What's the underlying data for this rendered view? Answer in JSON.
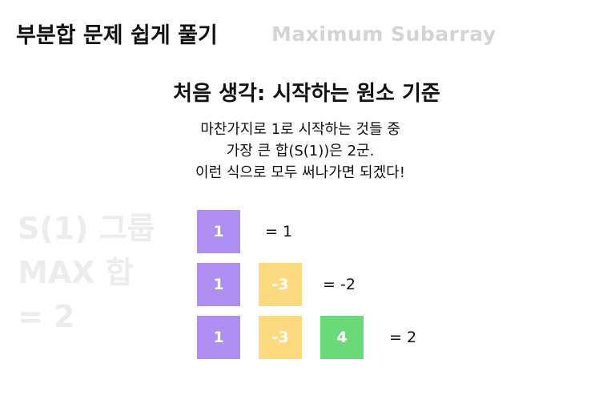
{
  "header": {
    "title": "부분합 문제 쉽게 풀기",
    "subtitle": "Maximum Subarray"
  },
  "section": {
    "heading": "처음 생각: 시작하는 원소 기준"
  },
  "description": {
    "lines": [
      "마찬가지로 1로 시작하는 것들 중",
      "가장 큰 합(S(1))은 2군.",
      "이런 식으로 모두 써나가면 되겠다!"
    ]
  },
  "side_label": {
    "lines": [
      "S(1) 그룹",
      "MAX 합",
      "= 2"
    ]
  },
  "colors": {
    "purple": "#ae8ef0",
    "yellow": "#fdd97f",
    "green": "#6bd97a",
    "muted": "#ececec"
  },
  "rows": [
    {
      "cells": [
        {
          "value": "1",
          "color": "purple"
        }
      ],
      "result": "= 1"
    },
    {
      "cells": [
        {
          "value": "1",
          "color": "purple"
        },
        {
          "value": "-3",
          "color": "yellow"
        }
      ],
      "result": "= -2"
    },
    {
      "cells": [
        {
          "value": "1",
          "color": "purple"
        },
        {
          "value": "-3",
          "color": "yellow"
        },
        {
          "value": "4",
          "color": "green"
        }
      ],
      "result": "= 2"
    }
  ]
}
